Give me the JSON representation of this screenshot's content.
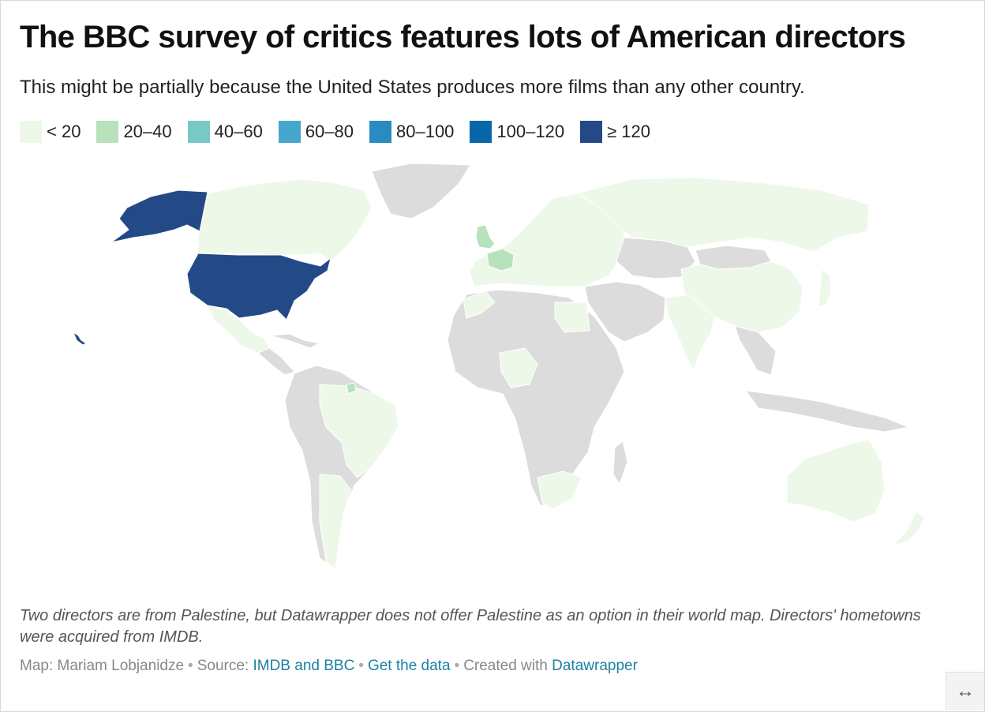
{
  "header": {
    "title": "The BBC survey of critics features lots of American directors",
    "subtitle": "This might be partially because the United States produces more films than any other country."
  },
  "legend": [
    {
      "label": "< 20",
      "color": "#edf8e9"
    },
    {
      "label": "20–40",
      "color": "#b7e2bc"
    },
    {
      "label": "40–60",
      "color": "#76c9c5"
    },
    {
      "label": "60–80",
      "color": "#45a7cd"
    },
    {
      "label": "80–100",
      "color": "#2a8bc1"
    },
    {
      "label": "100–120",
      "color": "#0867a8"
    },
    {
      "label": "≥ 120",
      "color": "#234987"
    }
  ],
  "map": {
    "no_data_color": "#dcdcdc",
    "highlighted": [
      {
        "region": "United States",
        "bin": "≥ 120"
      },
      {
        "region": "United Kingdom",
        "bin": "20–40"
      },
      {
        "region": "France",
        "bin": "20–40"
      },
      {
        "region": "French Guiana",
        "bin": "20–40"
      }
    ],
    "light_regions": [
      "Canada",
      "Mexico",
      "Brazil",
      "Argentina",
      "Russia",
      "China",
      "India",
      "Australia",
      "Japan",
      "Europe (other)",
      "Egypt",
      "Morocco",
      "Nigeria",
      "South Africa"
    ]
  },
  "notes": "Two directors are from Palestine, but Datawrapper does not offer Palestine as an option in their world map. Directors' hometowns were acquired from IMDB.",
  "credits": {
    "map_prefix": "Map: Mariam Lobjanidze",
    "source_prefix": "Source:",
    "source_link": "IMDB and BBC",
    "data_link": "Get the data",
    "created_prefix": "Created with",
    "created_link": "Datawrapper"
  },
  "expand_icon": "↔"
}
